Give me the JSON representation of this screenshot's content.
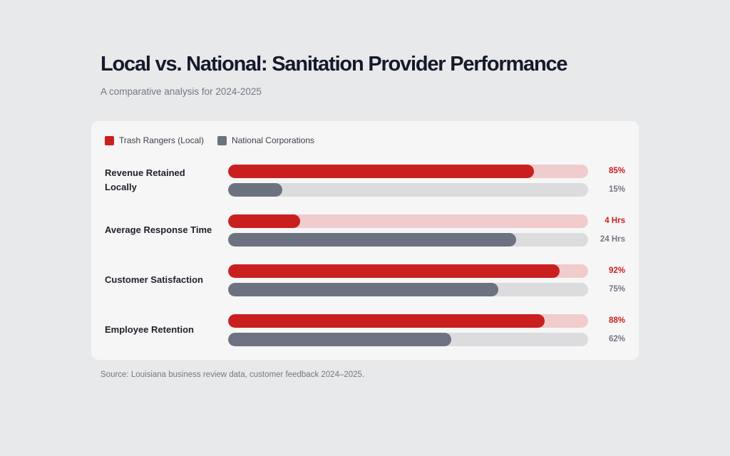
{
  "chart_data": {
    "type": "bar",
    "orientation": "horizontal",
    "title": "Local vs. National: Sanitation Provider Performance",
    "subtitle": "A comparative analysis for 2024-2025",
    "legend": [
      {
        "name": "Trash Rangers (Local)",
        "color": "#c9201f"
      },
      {
        "name": "National Corporations",
        "color": "#6c7280"
      }
    ],
    "legend_position": "top-left",
    "categories": [
      "Revenue Retained Locally",
      "Average Response Time",
      "Customer Satisfaction",
      "Employee Retention"
    ],
    "series": [
      {
        "name": "Trash Rangers (Local)",
        "color": "#c9201f",
        "track_color": "#f0cccc",
        "fill_percent": [
          85,
          20,
          92,
          88
        ],
        "labels": [
          "85%",
          "4 Hrs",
          "92%",
          "88%"
        ]
      },
      {
        "name": "National Corporations",
        "color": "#6c7280",
        "track_color": "#dcdcde",
        "fill_percent": [
          15,
          80,
          75,
          62
        ],
        "labels": [
          "15%",
          "24 Hrs",
          "75%",
          "62%"
        ]
      }
    ],
    "xlim": [
      0,
      100
    ],
    "grid": false,
    "source": "Source: Louisiana business review data, customer feedback 2024–2025."
  }
}
